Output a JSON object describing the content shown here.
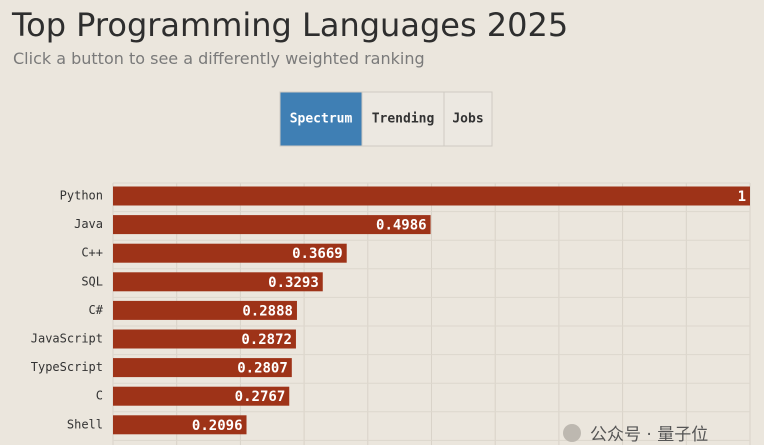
{
  "chart_data": {
    "type": "bar",
    "orientation": "horizontal",
    "title": "Top Programming Languages 2025",
    "subtitle": "Click a button to see a differently weighted ranking",
    "buttons": [
      "Spectrum",
      "Trending",
      "Jobs"
    ],
    "active_button": 0,
    "categories": [
      "Python",
      "Java",
      "C++",
      "SQL",
      "C#",
      "JavaScript",
      "TypeScript",
      "C",
      "Shell"
    ],
    "values": [
      1,
      0.4986,
      0.3669,
      0.3293,
      0.2888,
      0.2872,
      0.2807,
      0.2767,
      0.2096
    ],
    "color": "#9e3318",
    "xlim": [
      0,
      1
    ],
    "grid": true,
    "watermark": "公众号 · 量子位"
  }
}
